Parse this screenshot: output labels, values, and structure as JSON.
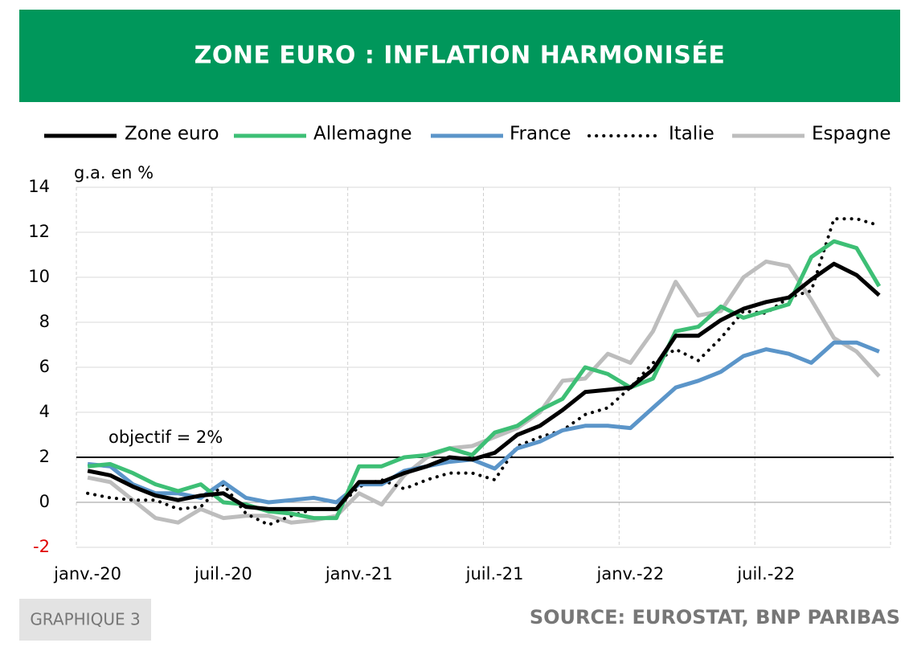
{
  "chart_data": {
    "type": "line",
    "title": "ZONE EURO : INFLATION HARMONISÉE",
    "y_label": "g.a. en %",
    "figure_label": "GRAPHIQUE 3",
    "source": "SOURCE: EUROSTAT, BNP PARIBAS",
    "categories": [
      "janv.-20",
      null,
      null,
      null,
      null,
      null,
      "juil.-20",
      null,
      null,
      null,
      null,
      null,
      "janv.-21",
      null,
      null,
      null,
      null,
      null,
      "juil.-21",
      null,
      null,
      null,
      null,
      null,
      "janv.-22",
      null,
      null,
      null,
      null,
      null,
      "juil.-22",
      null,
      null,
      null,
      null,
      null
    ],
    "ylim": [
      -2,
      14
    ],
    "yticks": [
      -2,
      0,
      2,
      4,
      6,
      8,
      10,
      12,
      14
    ],
    "grid": true,
    "reference_line": {
      "value": 2,
      "label": "objectif = 2%"
    },
    "series": [
      {
        "name": "Zone euro",
        "color": "#000000",
        "style": "solid",
        "values": [
          1.4,
          1.2,
          0.7,
          0.3,
          0.1,
          0.3,
          0.4,
          -0.2,
          -0.3,
          -0.3,
          -0.3,
          -0.3,
          0.9,
          0.9,
          1.3,
          1.6,
          2.0,
          1.9,
          2.2,
          3.0,
          3.4,
          4.1,
          4.9,
          5.0,
          5.1,
          5.9,
          7.4,
          7.4,
          8.1,
          8.6,
          8.9,
          9.1,
          9.9,
          10.6,
          10.1,
          9.2
        ]
      },
      {
        "name": "Allemagne",
        "color": "#3dbf75",
        "style": "solid",
        "values": [
          1.6,
          1.7,
          1.3,
          0.8,
          0.5,
          0.8,
          0.0,
          -0.1,
          -0.4,
          -0.5,
          -0.7,
          -0.7,
          1.6,
          1.6,
          2.0,
          2.1,
          2.4,
          2.1,
          3.1,
          3.4,
          4.1,
          4.6,
          6.0,
          5.7,
          5.1,
          5.5,
          7.6,
          7.8,
          8.7,
          8.2,
          8.5,
          8.8,
          10.9,
          11.6,
          11.3,
          9.6
        ]
      },
      {
        "name": "France",
        "color": "#5b95c9",
        "style": "solid",
        "values": [
          1.7,
          1.6,
          0.8,
          0.4,
          0.4,
          0.2,
          0.9,
          0.2,
          0.0,
          0.1,
          0.2,
          0.0,
          0.8,
          0.8,
          1.4,
          1.6,
          1.8,
          1.9,
          1.5,
          2.4,
          2.7,
          3.2,
          3.4,
          3.4,
          3.3,
          4.2,
          5.1,
          5.4,
          5.8,
          6.5,
          6.8,
          6.6,
          6.2,
          7.1,
          7.1,
          6.7
        ]
      },
      {
        "name": "Italie",
        "color": "#000000",
        "style": "dotted",
        "values": [
          0.4,
          0.2,
          0.1,
          0.1,
          -0.3,
          -0.2,
          0.8,
          -0.5,
          -1.0,
          -0.6,
          -0.3,
          -0.3,
          0.7,
          1.0,
          0.6,
          1.0,
          1.3,
          1.3,
          1.0,
          2.5,
          2.9,
          3.2,
          3.9,
          4.2,
          5.1,
          6.2,
          6.8,
          6.3,
          7.3,
          8.5,
          8.4,
          9.1,
          9.4,
          12.6,
          12.6,
          12.3
        ]
      },
      {
        "name": "Espagne",
        "color": "#bdbdbd",
        "style": "solid",
        "values": [
          1.1,
          0.9,
          0.1,
          -0.7,
          -0.9,
          -0.3,
          -0.7,
          -0.6,
          -0.6,
          -0.9,
          -0.8,
          -0.6,
          0.4,
          -0.1,
          1.2,
          2.0,
          2.4,
          2.5,
          2.9,
          3.3,
          4.0,
          5.4,
          5.5,
          6.6,
          6.2,
          7.6,
          9.8,
          8.3,
          8.5,
          10.0,
          10.7,
          10.5,
          9.0,
          7.3,
          6.7,
          5.6
        ]
      }
    ]
  }
}
